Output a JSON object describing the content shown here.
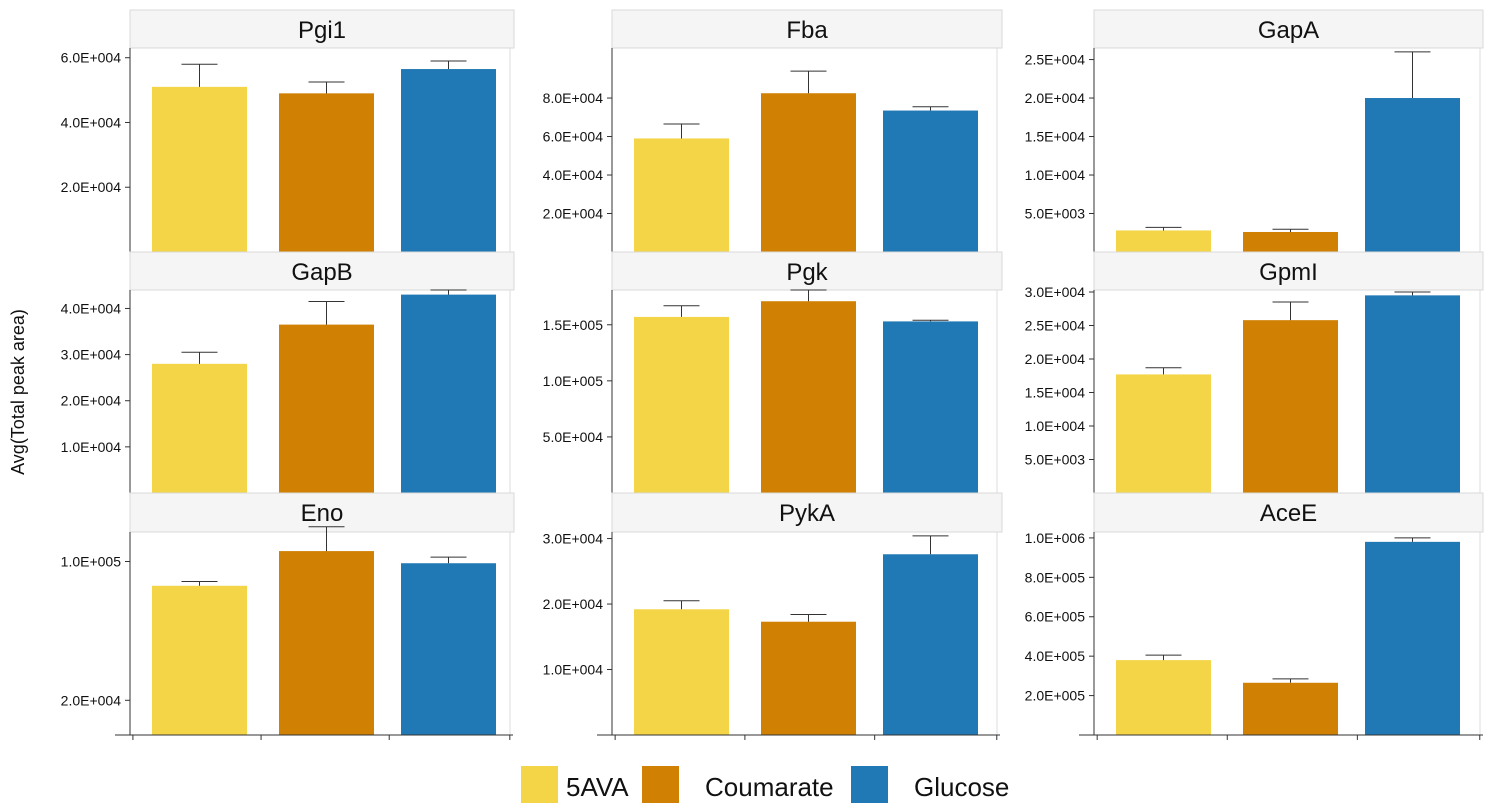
{
  "chart_data": {
    "type": "bar",
    "ylabel": "Avg(Total peak area)",
    "xlabel": "",
    "legend": {
      "placement": "bottom-center",
      "entries": [
        "5AVA",
        "Coumarate",
        "Glucose"
      ]
    },
    "categories": [
      "5AVA",
      "Coumarate",
      "Glucose"
    ],
    "colors": {
      "5AVA": "#f4d547",
      "Coumarate": "#d08103",
      "Glucose": "#2078b4",
      "error_bar": "#333333",
      "strip_bg": "#f5f5f5",
      "strip_border": "#d9d9d9",
      "frame": "#dddddd"
    },
    "grid": false,
    "panels": [
      {
        "title": "Pgi1",
        "ylim": [
          0,
          63000
        ],
        "ticks": [
          20000,
          40000,
          60000
        ],
        "tick_labels": [
          "2.0E+004",
          "4.0E+004",
          "6.0E+004"
        ],
        "values": [
          51000,
          49000,
          56500
        ],
        "errors": [
          7000,
          3500,
          2500
        ]
      },
      {
        "title": "Fba",
        "ylim": [
          0,
          106000
        ],
        "ticks": [
          20000,
          40000,
          60000,
          80000
        ],
        "tick_labels": [
          "2.0E+004",
          "4.0E+004",
          "6.0E+004",
          "8.0E+004"
        ],
        "values": [
          59000,
          82500,
          73500
        ],
        "errors": [
          7500,
          11500,
          2000
        ]
      },
      {
        "title": "GapA",
        "ylim": [
          0,
          26500
        ],
        "ticks": [
          5000,
          10000,
          15000,
          20000,
          25000
        ],
        "tick_labels": [
          "5.0E+003",
          "1.0E+004",
          "1.5E+004",
          "2.0E+004",
          "2.5E+004"
        ],
        "values": [
          2800,
          2600,
          20000
        ],
        "errors": [
          400,
          350,
          6000
        ]
      },
      {
        "title": "GapB",
        "ylim": [
          0,
          44000
        ],
        "ticks": [
          10000,
          20000,
          30000,
          40000
        ],
        "tick_labels": [
          "1.0E+004",
          "2.0E+004",
          "3.0E+004",
          "4.0E+004"
        ],
        "values": [
          28000,
          36500,
          43000
        ],
        "errors": [
          2500,
          5000,
          1000
        ]
      },
      {
        "title": "Pgk",
        "ylim": [
          0,
          181000
        ],
        "ticks": [
          50000,
          100000,
          150000
        ],
        "tick_labels": [
          "5.0E+004",
          "1.0E+005",
          "1.5E+005"
        ],
        "values": [
          157000,
          171000,
          153000
        ],
        "errors": [
          10000,
          10000,
          1000
        ]
      },
      {
        "title": "GpmI",
        "ylim": [
          0,
          30300
        ],
        "ticks": [
          5000,
          10000,
          15000,
          20000,
          25000,
          30000
        ],
        "tick_labels": [
          "5.0E+003",
          "1.0E+004",
          "1.5E+004",
          "2.0E+004",
          "2.5E+004",
          "3.0E+004"
        ],
        "values": [
          17700,
          25800,
          29500
        ],
        "errors": [
          1000,
          2700,
          500
        ]
      },
      {
        "title": "Eno",
        "ylim": [
          0,
          117000
        ],
        "ticks": [
          20000,
          100000
        ],
        "tick_labels": [
          "2.0E+004",
          "1.0E+005"
        ],
        "values": [
          86000,
          106000,
          99000
        ],
        "errors": [
          2500,
          14000,
          3500
        ]
      },
      {
        "title": "PykA",
        "ylim": [
          0,
          31000
        ],
        "ticks": [
          10000,
          20000,
          30000
        ],
        "tick_labels": [
          "1.0E+004",
          "2.0E+004",
          "3.0E+004"
        ],
        "values": [
          19200,
          17300,
          27600
        ],
        "errors": [
          1300,
          1100,
          2800
        ]
      },
      {
        "title": "AceE",
        "ylim": [
          0,
          1030000
        ],
        "ticks": [
          200000,
          400000,
          600000,
          800000,
          1000000
        ],
        "tick_labels": [
          "2.0E+005",
          "4.0E+005",
          "6.0E+005",
          "8.0E+005",
          "1.0E+006"
        ],
        "values": [
          380000,
          265000,
          980000
        ],
        "errors": [
          25000,
          20000,
          20000
        ]
      }
    ]
  }
}
